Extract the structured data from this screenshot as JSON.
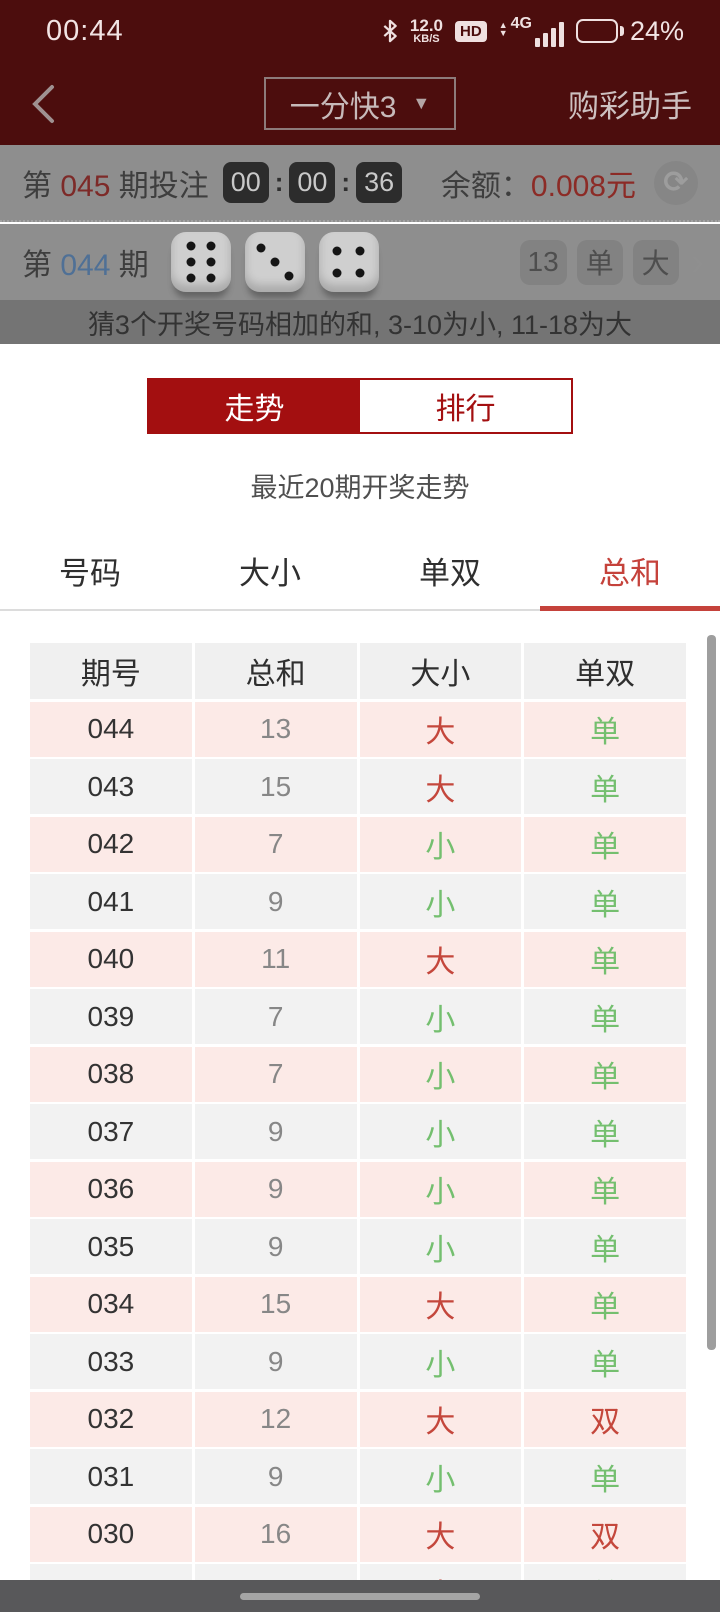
{
  "status_bar": {
    "time": "00:44",
    "network_speed": "12.0",
    "network_speed_unit": "KB/S",
    "hd_label": "HD",
    "network_type": "4G",
    "battery_percent": "24%"
  },
  "nav": {
    "game_selector": "一分快3",
    "dropdown_caret": "▼",
    "title": "购彩助手"
  },
  "bet_panel": {
    "issue_prefix": "第",
    "issue_number": "045",
    "issue_suffix": "期投注",
    "countdown": {
      "hours": "00",
      "minutes": "00",
      "seconds": "36",
      "colon": ":"
    },
    "balance_label": "余额：",
    "balance_value": "0.008元"
  },
  "last_draw": {
    "issue_prefix": "第",
    "issue_number": "044",
    "issue_suffix": "期",
    "dice": [
      6,
      3,
      4
    ],
    "sum_badge": "13",
    "parity_badge": "单",
    "size_badge": "大",
    "chevron": "›"
  },
  "tip": "猜3个开奖号码相加的和, 3-10为小, 11-18为大",
  "sheet": {
    "tabs": {
      "trend": "走势",
      "rank": "排行"
    },
    "subtitle": "最近20期开奖走势",
    "category_tabs": [
      {
        "label": "号码",
        "active": false
      },
      {
        "label": "大小",
        "active": false
      },
      {
        "label": "单双",
        "active": false
      },
      {
        "label": "总和",
        "active": true
      }
    ],
    "table": {
      "headers": [
        "期号",
        "总和",
        "大小",
        "单双"
      ],
      "rows": [
        {
          "issue": "044",
          "sum": "13",
          "size": "大",
          "parity": "单"
        },
        {
          "issue": "043",
          "sum": "15",
          "size": "大",
          "parity": "单"
        },
        {
          "issue": "042",
          "sum": "7",
          "size": "小",
          "parity": "单"
        },
        {
          "issue": "041",
          "sum": "9",
          "size": "小",
          "parity": "单"
        },
        {
          "issue": "040",
          "sum": "11",
          "size": "大",
          "parity": "单"
        },
        {
          "issue": "039",
          "sum": "7",
          "size": "小",
          "parity": "单"
        },
        {
          "issue": "038",
          "sum": "7",
          "size": "小",
          "parity": "单"
        },
        {
          "issue": "037",
          "sum": "9",
          "size": "小",
          "parity": "单"
        },
        {
          "issue": "036",
          "sum": "9",
          "size": "小",
          "parity": "单"
        },
        {
          "issue": "035",
          "sum": "9",
          "size": "小",
          "parity": "单"
        },
        {
          "issue": "034",
          "sum": "15",
          "size": "大",
          "parity": "单"
        },
        {
          "issue": "033",
          "sum": "9",
          "size": "小",
          "parity": "单"
        },
        {
          "issue": "032",
          "sum": "12",
          "size": "大",
          "parity": "双"
        },
        {
          "issue": "031",
          "sum": "9",
          "size": "小",
          "parity": "单"
        },
        {
          "issue": "030",
          "sum": "16",
          "size": "大",
          "parity": "双"
        },
        {
          "issue": "",
          "sum": "",
          "size": "大",
          "parity": "单"
        }
      ]
    }
  },
  "colors": {
    "primary_red": "#a30f10",
    "accent_red": "#c4473c",
    "green": "#74bf6f",
    "pink_row": "#fceae7",
    "gray_row": "#f2f2f2"
  }
}
